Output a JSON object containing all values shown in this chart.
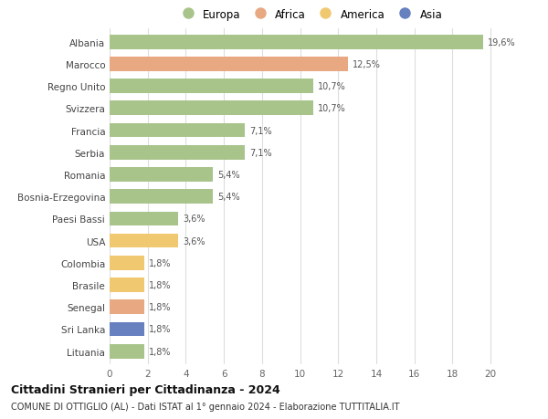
{
  "title": "Cittadini Stranieri per Cittadinanza - 2024",
  "subtitle": "COMUNE DI OTTIGLIO (AL) - Dati ISTAT al 1° gennaio 2024 - Elaborazione TUTTITALIA.IT",
  "categories": [
    "Albania",
    "Marocco",
    "Regno Unito",
    "Svizzera",
    "Francia",
    "Serbia",
    "Romania",
    "Bosnia-Erzegovina",
    "Paesi Bassi",
    "USA",
    "Colombia",
    "Brasile",
    "Senegal",
    "Sri Lanka",
    "Lituania"
  ],
  "values": [
    19.6,
    12.5,
    10.7,
    10.7,
    7.1,
    7.1,
    5.4,
    5.4,
    3.6,
    3.6,
    1.8,
    1.8,
    1.8,
    1.8,
    1.8
  ],
  "labels": [
    "19,6%",
    "12,5%",
    "10,7%",
    "10,7%",
    "7,1%",
    "7,1%",
    "5,4%",
    "5,4%",
    "3,6%",
    "3,6%",
    "1,8%",
    "1,8%",
    "1,8%",
    "1,8%",
    "1,8%"
  ],
  "colors": [
    "#a8c48a",
    "#e8a882",
    "#a8c48a",
    "#a8c48a",
    "#a8c48a",
    "#a8c48a",
    "#a8c48a",
    "#a8c48a",
    "#a8c48a",
    "#f0c870",
    "#f0c870",
    "#f0c870",
    "#e8a882",
    "#6680c0",
    "#a8c48a"
  ],
  "legend": [
    {
      "label": "Europa",
      "color": "#a8c48a"
    },
    {
      "label": "Africa",
      "color": "#e8a882"
    },
    {
      "label": "America",
      "color": "#f0c870"
    },
    {
      "label": "Asia",
      "color": "#6680c0"
    }
  ],
  "xlim": [
    0,
    21
  ],
  "xticks": [
    0,
    2,
    4,
    6,
    8,
    10,
    12,
    14,
    16,
    18,
    20
  ],
  "background_color": "#ffffff",
  "grid_color": "#dddddd",
  "bar_height": 0.65
}
